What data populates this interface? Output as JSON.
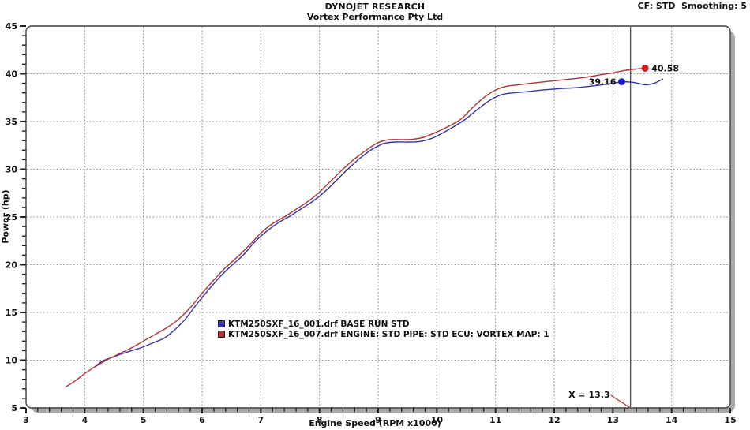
{
  "header": {
    "title": "DYNOJET RESEARCH",
    "subtitle": "Vortex Performance Pty Ltd",
    "settings": "CF: STD  Smoothing: 5"
  },
  "chart_data": {
    "type": "line",
    "title": "DYNOJET RESEARCH",
    "subtitle": "Vortex Performance Pty Ltd",
    "xlabel": "Engine Speed (RPM x1000)",
    "ylabel": "Power (hp)",
    "xlim": [
      3,
      15
    ],
    "ylim": [
      5,
      45
    ],
    "x_ticks": [
      3,
      4,
      5,
      6,
      7,
      8,
      9,
      10,
      11,
      12,
      13,
      14,
      15
    ],
    "y_ticks": [
      5,
      10,
      15,
      20,
      25,
      30,
      35,
      40,
      45
    ],
    "x_minor_step": 0.2,
    "y_minor_step": 1,
    "grid": true,
    "legend_position": "bottom-center-inside",
    "cursor": {
      "x": 13.3,
      "label": "X = 13.3"
    },
    "series": [
      {
        "name": "KTM250SXF_16_001.drf BASE RUN STD",
        "color": "#3434a8",
        "marker_color": "#1414d8",
        "peak": {
          "x": 13.15,
          "y": 39.16,
          "label": "39.16",
          "label_side": "left"
        },
        "points": [
          [
            4.15,
            9.2
          ],
          [
            4.3,
            9.9
          ],
          [
            4.45,
            10.25
          ],
          [
            4.6,
            10.6
          ],
          [
            4.8,
            11.0
          ],
          [
            5.0,
            11.4
          ],
          [
            5.2,
            11.9
          ],
          [
            5.35,
            12.3
          ],
          [
            5.5,
            13.0
          ],
          [
            5.7,
            14.2
          ],
          [
            5.9,
            15.8
          ],
          [
            6.1,
            17.3
          ],
          [
            6.3,
            18.7
          ],
          [
            6.5,
            19.9
          ],
          [
            6.7,
            21.0
          ],
          [
            6.9,
            22.4
          ],
          [
            7.1,
            23.5
          ],
          [
            7.3,
            24.4
          ],
          [
            7.5,
            25.1
          ],
          [
            7.7,
            25.9
          ],
          [
            7.9,
            26.7
          ],
          [
            8.1,
            27.7
          ],
          [
            8.3,
            28.9
          ],
          [
            8.5,
            30.1
          ],
          [
            8.7,
            31.2
          ],
          [
            8.9,
            32.1
          ],
          [
            9.1,
            32.7
          ],
          [
            9.3,
            32.85
          ],
          [
            9.5,
            32.85
          ],
          [
            9.7,
            32.9
          ],
          [
            9.9,
            33.2
          ],
          [
            10.1,
            33.8
          ],
          [
            10.3,
            34.5
          ],
          [
            10.5,
            35.3
          ],
          [
            10.7,
            36.3
          ],
          [
            10.9,
            37.2
          ],
          [
            11.1,
            37.8
          ],
          [
            11.3,
            38.0
          ],
          [
            11.5,
            38.1
          ],
          [
            11.8,
            38.3
          ],
          [
            12.1,
            38.45
          ],
          [
            12.4,
            38.55
          ],
          [
            12.7,
            38.75
          ],
          [
            13.0,
            39.0
          ],
          [
            13.15,
            39.16
          ],
          [
            13.35,
            39.1
          ],
          [
            13.55,
            38.85
          ],
          [
            13.7,
            39.0
          ],
          [
            13.85,
            39.45
          ]
        ]
      },
      {
        "name": "KTM250SXF_16_007.drf ENGINE: STD PIPE: STD ECU: VORTEX MAP: 1",
        "color": "#b03434",
        "marker_color": "#e01414",
        "peak": {
          "x": 13.55,
          "y": 40.58,
          "label": "40.58",
          "label_side": "right"
        },
        "points": [
          [
            3.68,
            7.2
          ],
          [
            3.85,
            7.9
          ],
          [
            4.0,
            8.6
          ],
          [
            4.2,
            9.4
          ],
          [
            4.4,
            10.1
          ],
          [
            4.6,
            10.7
          ],
          [
            4.8,
            11.3
          ],
          [
            5.0,
            12.0
          ],
          [
            5.2,
            12.7
          ],
          [
            5.4,
            13.4
          ],
          [
            5.6,
            14.3
          ],
          [
            5.8,
            15.5
          ],
          [
            6.0,
            17.0
          ],
          [
            6.2,
            18.4
          ],
          [
            6.4,
            19.7
          ],
          [
            6.6,
            20.8
          ],
          [
            6.8,
            22.0
          ],
          [
            7.0,
            23.3
          ],
          [
            7.2,
            24.3
          ],
          [
            7.4,
            25.0
          ],
          [
            7.6,
            25.8
          ],
          [
            7.8,
            26.6
          ],
          [
            8.0,
            27.6
          ],
          [
            8.2,
            28.8
          ],
          [
            8.4,
            30.0
          ],
          [
            8.6,
            31.1
          ],
          [
            8.8,
            32.0
          ],
          [
            9.0,
            32.8
          ],
          [
            9.2,
            33.1
          ],
          [
            9.4,
            33.1
          ],
          [
            9.6,
            33.15
          ],
          [
            9.8,
            33.4
          ],
          [
            10.0,
            33.9
          ],
          [
            10.2,
            34.5
          ],
          [
            10.4,
            35.2
          ],
          [
            10.6,
            36.4
          ],
          [
            10.8,
            37.5
          ],
          [
            11.0,
            38.3
          ],
          [
            11.2,
            38.7
          ],
          [
            11.4,
            38.85
          ],
          [
            11.6,
            39.0
          ],
          [
            11.9,
            39.2
          ],
          [
            12.2,
            39.4
          ],
          [
            12.5,
            39.6
          ],
          [
            12.8,
            39.9
          ],
          [
            13.0,
            40.1
          ],
          [
            13.2,
            40.35
          ],
          [
            13.4,
            40.5
          ],
          [
            13.55,
            40.58
          ]
        ]
      }
    ]
  },
  "colors": {
    "grid": "#909090",
    "axis": "#404040",
    "shadow": "#a8a8a8",
    "cursor_line": "#555555",
    "leader_line": "#b03434",
    "text": "#111111",
    "background": "#ffffff"
  }
}
